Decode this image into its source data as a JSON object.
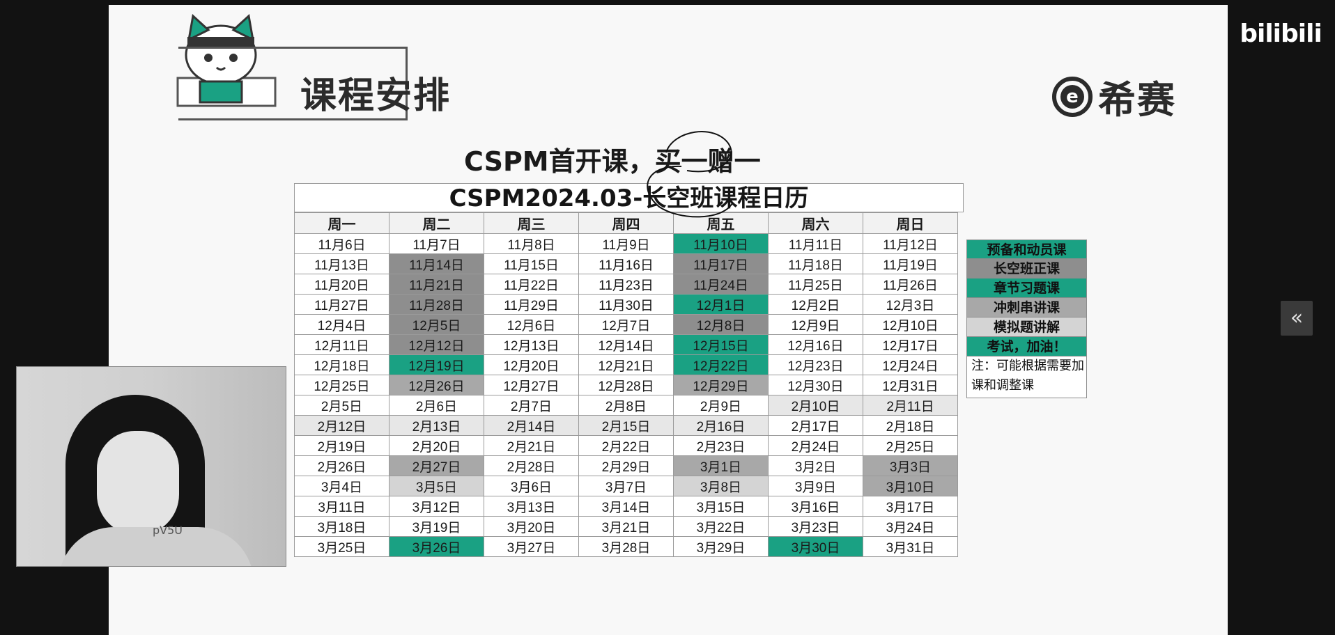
{
  "video_player": {
    "site_logo": "bilibili",
    "collapse_icon_label": "«"
  },
  "slide": {
    "section_title": "课程安排",
    "brand_mark": "e",
    "brand_name": "希赛",
    "headline": "CSPM首开课，买一赠一",
    "calendar_title": "CSPM2024.03-长空班课程日历",
    "weekdays": [
      "周一",
      "周二",
      "周三",
      "周四",
      "周五",
      "周六",
      "周日"
    ],
    "rows": [
      [
        "11月6日",
        "11月7日",
        "11月8日",
        "11月9日",
        "11月10日",
        "11月11日",
        "11月12日"
      ],
      [
        "11月13日",
        "11月14日",
        "11月15日",
        "11月16日",
        "11月17日",
        "11月18日",
        "11月19日"
      ],
      [
        "11月20日",
        "11月21日",
        "11月22日",
        "11月23日",
        "11月24日",
        "11月25日",
        "11月26日"
      ],
      [
        "11月27日",
        "11月28日",
        "11月29日",
        "11月30日",
        "12月1日",
        "12月2日",
        "12月3日"
      ],
      [
        "12月4日",
        "12月5日",
        "12月6日",
        "12月7日",
        "12月8日",
        "12月9日",
        "12月10日"
      ],
      [
        "12月11日",
        "12月12日",
        "12月13日",
        "12月14日",
        "12月15日",
        "12月16日",
        "12月17日"
      ],
      [
        "12月18日",
        "12月19日",
        "12月20日",
        "12月21日",
        "12月22日",
        "12月23日",
        "12月24日"
      ],
      [
        "12月25日",
        "12月26日",
        "12月27日",
        "12月28日",
        "12月29日",
        "12月30日",
        "12月31日"
      ],
      [
        "2月5日",
        "2月6日",
        "2月7日",
        "2月8日",
        "2月9日",
        "2月10日",
        "2月11日"
      ],
      [
        "2月12日",
        "2月13日",
        "2月14日",
        "2月15日",
        "2月16日",
        "2月17日",
        "2月18日"
      ],
      [
        "2月19日",
        "2月20日",
        "2月21日",
        "2月22日",
        "2月23日",
        "2月24日",
        "2月25日"
      ],
      [
        "2月26日",
        "2月27日",
        "2月28日",
        "2月29日",
        "3月1日",
        "3月2日",
        "3月3日"
      ],
      [
        "3月4日",
        "3月5日",
        "3月6日",
        "3月7日",
        "3月8日",
        "3月9日",
        "3月10日"
      ],
      [
        "3月11日",
        "3月12日",
        "3月13日",
        "3月14日",
        "3月15日",
        "3月16日",
        "3月17日"
      ],
      [
        "3月18日",
        "3月19日",
        "3月20日",
        "3月21日",
        "3月22日",
        "3月23日",
        "3月24日"
      ],
      [
        "3月25日",
        "3月26日",
        "3月27日",
        "3月28日",
        "3月29日",
        "3月30日",
        "3月31日"
      ]
    ],
    "cell_categories": [
      [
        "",
        "",
        "",
        "",
        "green",
        "",
        ""
      ],
      [
        "",
        "dark",
        "",
        "",
        "dark",
        "",
        ""
      ],
      [
        "",
        "dark",
        "",
        "",
        "dark",
        "",
        ""
      ],
      [
        "",
        "dark",
        "",
        "",
        "green",
        "",
        ""
      ],
      [
        "",
        "dark",
        "",
        "",
        "dark",
        "",
        ""
      ],
      [
        "",
        "dark",
        "",
        "",
        "green",
        "",
        ""
      ],
      [
        "",
        "green",
        "",
        "",
        "green",
        "",
        ""
      ],
      [
        "",
        "mid",
        "",
        "",
        "mid",
        "",
        ""
      ],
      [
        "",
        "",
        "",
        "",
        "",
        "lighter",
        "lighter"
      ],
      [
        "lighter",
        "lighter",
        "lighter",
        "lighter",
        "lighter",
        "",
        ""
      ],
      [
        "",
        "",
        "",
        "",
        "",
        "",
        ""
      ],
      [
        "",
        "mid",
        "",
        "",
        "mid",
        "",
        "mid"
      ],
      [
        "",
        "light",
        "",
        "",
        "light",
        "",
        "mid"
      ],
      [
        "",
        "",
        "",
        "",
        "",
        "",
        ""
      ],
      [
        "",
        "",
        "",
        "",
        "",
        "",
        ""
      ],
      [
        "",
        "green",
        "",
        "",
        "",
        "green",
        ""
      ]
    ],
    "category_colors": {
      "green": "#1aa183",
      "dark": "#8e8e8e",
      "mid": "#a8a8a8",
      "light": "#d4d4d4",
      "lighter": "#e7e7e7"
    },
    "legend": [
      {
        "label": "预备和动员课",
        "color": "#1aa183"
      },
      {
        "label": "长空班正课",
        "color": "#8e8e8e"
      },
      {
        "label": "章节习题课",
        "color": "#1aa183"
      },
      {
        "label": "冲刺串讲课",
        "color": "#a8a8a8"
      },
      {
        "label": "模拟题讲解",
        "color": "#d4d4d4"
      },
      {
        "label": "考试，加油！",
        "color": "#1aa183"
      }
    ],
    "legend_note": "注：可能根据需要加课和调整课"
  },
  "webcam": {
    "watermark": "pV5U"
  }
}
